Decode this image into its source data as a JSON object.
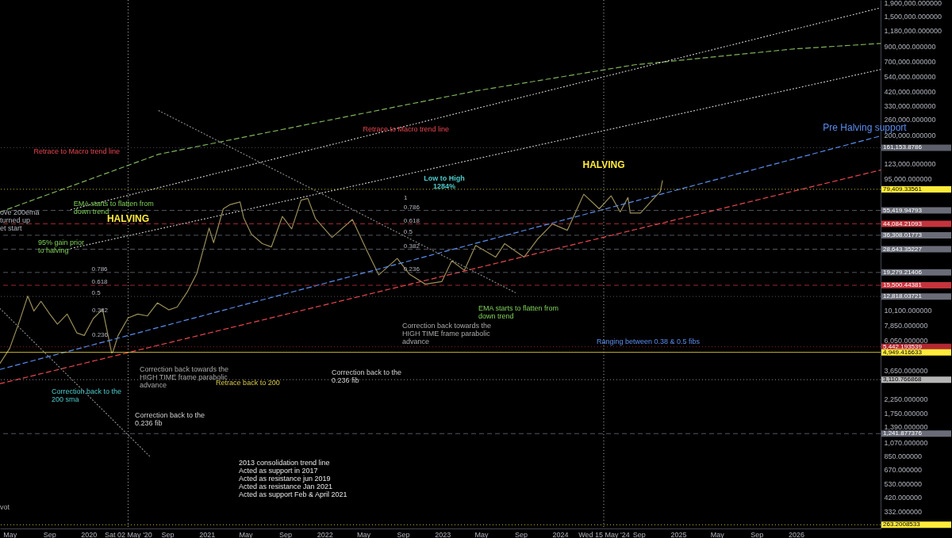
{
  "chart_data": {
    "type": "line",
    "log": "y",
    "grid": false,
    "xlim": [
      "2019-04-01",
      "2026-09-20"
    ],
    "ylim": [
      247,
      1990000
    ],
    "xticks": [
      {
        "value": "2019-05-01",
        "label": "May"
      },
      {
        "value": "2019-09-01",
        "label": "Sep"
      },
      {
        "value": "2020-01-01",
        "label": "2020"
      },
      {
        "value": "2020-05-02",
        "label": "Sat 02 May '20"
      },
      {
        "value": "2020-09-01",
        "label": "Sep"
      },
      {
        "value": "2021-01-01",
        "label": "2021"
      },
      {
        "value": "2021-05-01",
        "label": "May"
      },
      {
        "value": "2021-09-01",
        "label": "Sep"
      },
      {
        "value": "2022-01-01",
        "label": "2022"
      },
      {
        "value": "2022-05-01",
        "label": "May"
      },
      {
        "value": "2022-09-01",
        "label": "Sep"
      },
      {
        "value": "2023-01-01",
        "label": "2023"
      },
      {
        "value": "2023-05-01",
        "label": "May"
      },
      {
        "value": "2023-09-01",
        "label": "Sep"
      },
      {
        "value": "2024-01-01",
        "label": "2024"
      },
      {
        "value": "2024-05-15",
        "label": "Wed 15 May '24"
      },
      {
        "value": "2024-09-01",
        "label": "Sep"
      },
      {
        "value": "2025-01-01",
        "label": "2025"
      },
      {
        "value": "2025-05-01",
        "label": "May"
      },
      {
        "value": "2025-09-01",
        "label": "Sep"
      },
      {
        "value": "2026-01-01",
        "label": "2026"
      }
    ],
    "yticks": [
      {
        "value": 1900000,
        "label": "1,900,000.000000"
      },
      {
        "value": 1500000,
        "label": "1,500,000.000000"
      },
      {
        "value": 1180000,
        "label": "1,180,000.000000"
      },
      {
        "value": 900000,
        "label": "900,000.000000"
      },
      {
        "value": 700000,
        "label": "700,000.000000"
      },
      {
        "value": 540000,
        "label": "540,000.000000"
      },
      {
        "value": 420000,
        "label": "420,000.000000"
      },
      {
        "value": 330000,
        "label": "330,000.000000"
      },
      {
        "value": 260000,
        "label": "260,000.000000"
      },
      {
        "value": 200000,
        "label": "200,000.000000"
      },
      {
        "value": 123000,
        "label": "123,000.000000"
      },
      {
        "value": 95000,
        "label": "95,000.000000"
      },
      {
        "value": 10100,
        "label": "10,100.000000"
      },
      {
        "value": 7850,
        "label": "7,850.000000"
      },
      {
        "value": 6050,
        "label": "6,050.000000"
      },
      {
        "value": 3650,
        "label": "3,650.000000"
      },
      {
        "value": 2250,
        "label": "2,250.000000"
      },
      {
        "value": 1750,
        "label": "1,750.000000"
      },
      {
        "value": 1390,
        "label": "1,390.000000"
      },
      {
        "value": 1070,
        "label": "1,070.000000"
      },
      {
        "value": 850,
        "label": "850.000000"
      },
      {
        "value": 670,
        "label": "670.000000"
      },
      {
        "value": 530,
        "label": "530.000000"
      },
      {
        "value": 420,
        "label": "420.000000"
      },
      {
        "value": 332,
        "label": "332.000000"
      }
    ],
    "x": [
      "2019-04-01",
      "2019-05-01",
      "2019-06-01",
      "2019-06-26",
      "2019-07-15",
      "2019-08-06",
      "2019-09-01",
      "2019-09-26",
      "2019-10-26",
      "2019-11-25",
      "2019-12-18",
      "2020-01-15",
      "2020-02-13",
      "2020-03-12",
      "2020-03-16",
      "2020-04-01",
      "2020-05-02",
      "2020-06-01",
      "2020-07-01",
      "2020-08-01",
      "2020-09-05",
      "2020-10-01",
      "2020-11-01",
      "2020-12-01",
      "2021-01-08",
      "2021-01-22",
      "2021-02-21",
      "2021-03-13",
      "2021-04-14",
      "2021-04-25",
      "2021-05-19",
      "2021-06-22",
      "2021-07-20",
      "2021-08-23",
      "2021-09-21",
      "2021-10-20",
      "2021-11-10",
      "2021-12-04",
      "2022-01-24",
      "2022-03-28",
      "2022-05-12",
      "2022-06-18",
      "2022-08-14",
      "2022-09-20",
      "2022-11-09",
      "2022-12-30",
      "2023-01-30",
      "2023-03-10",
      "2023-04-14",
      "2023-06-15",
      "2023-07-13",
      "2023-09-11",
      "2023-10-23",
      "2023-12-08",
      "2024-01-23",
      "2024-03-14",
      "2024-05-01",
      "2024-06-07",
      "2024-07-05",
      "2024-07-29",
      "2024-08-05",
      "2024-09-06",
      "2024-10-29",
      "2024-11-06",
      "2024-11-13"
    ],
    "series": [
      {
        "color": "#9a8f58",
        "line_style": "solid",
        "values": [
          4100,
          5300,
          8500,
          12900,
          10000,
          11800,
          9600,
          8000,
          9500,
          6900,
          6600,
          8800,
          10300,
          4900,
          5000,
          6600,
          8900,
          9500,
          9200,
          11500,
          10200,
          10700,
          13800,
          19000,
          41000,
          32000,
          57000,
          61000,
          64000,
          49000,
          37000,
          31500,
          29800,
          50000,
          40500,
          66000,
          68000,
          48000,
          35000,
          47500,
          28000,
          18500,
          24500,
          18800,
          15800,
          16500,
          23500,
          20000,
          30500,
          25000,
          31500,
          25000,
          34000,
          44000,
          39500,
          73000,
          57000,
          71000,
          54000,
          69000,
          53000,
          53000,
          73000,
          76000,
          92000
        ]
      },
      {
        "color": "#7fb35a",
        "line_style": "dashed",
        "x": [
          "2019-04-01",
          "2020-08-05",
          "2021-12-08",
          "2023-04-15",
          "2024-08-19",
          "2025-12-24",
          "2026-09-20"
        ],
        "values": [
          53950,
          144200,
          247200,
          423600,
          660700,
          864900,
          950600
        ]
      },
      {
        "color": "#5b8def",
        "line_style": "dashed",
        "x": [
          "2019-04-01",
          "2026-09-20"
        ],
        "values": [
          3700,
          196800
        ]
      },
      {
        "color": "#e8474f",
        "line_style": "dashed",
        "x": [
          "2019-04-01",
          "2026-09-20"
        ],
        "values": [
          2904,
          110200
        ]
      },
      {
        "color": "#c8c8c8",
        "line_style": "dotted",
        "x": [
          "2019-11-07",
          "2026-09-20"
        ],
        "values": [
          56230,
          1742000
        ]
      },
      {
        "color": "#c8c8c8",
        "line_style": "dotted",
        "x": [
          "2019-11-07",
          "2026-09-20"
        ],
        "values": [
          29040,
          609500
        ]
      },
      {
        "color": "#8a8a8a",
        "line_style": "dotted",
        "x": [
          "2020-08-05",
          "2023-08-15"
        ],
        "values": [
          302700,
          13680
        ]
      },
      {
        "color": "#8a8a8a",
        "line_style": "dotted",
        "x": [
          "2019-04-01",
          "2020-07-11"
        ],
        "values": [
          10440,
          830
        ]
      }
    ],
    "ref_lines": [
      {
        "axis": "x",
        "value": "2020-05-02",
        "color": "#b0b0b0",
        "line_style": "dotted"
      },
      {
        "axis": "x",
        "value": "2024-05-15",
        "color": "#b0b0b0",
        "line_style": "dotted"
      },
      {
        "axis": "y",
        "value": 161153.8786,
        "label": "161,153.8786",
        "color": "#5d606b",
        "line_style": "dotted"
      },
      {
        "axis": "y",
        "value": 79409.33561,
        "label": "79,409.33561",
        "color": "#ffeb3b",
        "line_style": "dotted"
      },
      {
        "axis": "y",
        "value": 55419.94793,
        "label": "55,419.94793",
        "color": "#6a6d78",
        "line_style": "dashed"
      },
      {
        "axis": "y",
        "value": 44084.21093,
        "label": "44,084.21093",
        "color": "#c4343d",
        "line_style": "dashed"
      },
      {
        "axis": "y",
        "value": 36308.01773,
        "label": "36,308.01773",
        "color": "#6a6d78",
        "line_style": "dashed"
      },
      {
        "axis": "y",
        "value": 28643.35227,
        "label": "28,643.35227",
        "color": "#6a6d78",
        "line_style": "dashed"
      },
      {
        "axis": "y",
        "value": 19279.21406,
        "label": "19,279.21406",
        "color": "#6a6d78",
        "line_style": "dashed"
      },
      {
        "axis": "y",
        "value": 15500.44381,
        "label": "15,500.44381",
        "color": "#c4343d",
        "line_style": "dashed"
      },
      {
        "axis": "y",
        "value": 12818.03721,
        "label": "12,818.03721",
        "color": "#6a6d78",
        "line_style": "dotted"
      },
      {
        "axis": "y",
        "value": 5442.193539,
        "label": "5,442.193539",
        "color": "#b22833",
        "line_style": "dotted"
      },
      {
        "axis": "y",
        "value": 4949.416633,
        "label": "4,949.416633",
        "color": "#ffeb3b",
        "line_style": "solid"
      },
      {
        "axis": "y",
        "value": 3110.766868,
        "label": "3,110.766868",
        "color": "#b5b5b5",
        "line_style": "dotted"
      },
      {
        "axis": "y",
        "value": 1241.877376,
        "label": "1,241.877376",
        "color": "#6a6d78",
        "line_style": "dashed"
      },
      {
        "axis": "y",
        "value": 263.2008533,
        "label": "263.2008533",
        "color": "#ffeb3b",
        "line_style": "dotted"
      }
    ],
    "annotations": [
      {
        "text": "Retrace to Macro trend line",
        "x": "2019-11-25",
        "y": 152400
      },
      {
        "text": "Retrace to Macro trend line",
        "x": "2022-09-10",
        "y": 221800
      },
      {
        "text": "HALVING",
        "x": "2020-05-02",
        "y": 47860
      },
      {
        "text": "HALVING",
        "x": "2024-05-15",
        "y": 121100
      },
      "Low to High\n1284%",
      "Pre Halving support",
      {
        "text": "ove 200ema\nturned up\net start",
        "x": "2019-04-01",
        "y": 53950
      },
      {
        "text": "EMA starts to flatten from\ndown trend",
        "x": "2019-11-15",
        "y": 61800
      },
      "95% gain prior\nto halving",
      "Correction back towards the\nHIGH TIME frame parabolic\nadvance",
      "Correction back to the\n200 sma",
      {
        "text": "Retrace back to 200",
        "x": "2021-01-29",
        "y": 2944
      },
      "Correction back to the\n0.236 fib",
      "2013 consolidation trend line\nActed as support in 2017\nActed as resistance jun 2019\nActed as resistance Jan 2021\nActed as support Feb & April 2021",
      "Correction back to the\n0.236 fib",
      "Correction back towards the\nHIGH TIME frame parabolic\nadvance",
      "EMA starts to flatten from\ndown trend",
      "Ranging between 0.38 & 0.5 fibs",
      "vot",
      {
        "text": "0.786",
        "x": "2020-01-10",
        "y": 19279.21406
      },
      {
        "text": "0.618",
        "x": "2020-01-10",
        "y": 15500.44381
      },
      {
        "text": "0.5",
        "x": "2020-01-10",
        "y": 12818.03721
      },
      "0.382",
      "0.236",
      "1",
      {
        "text": "0.786",
        "x": "2022-09-03",
        "y": 55419.94793
      },
      {
        "text": "0.618",
        "x": "2022-09-03",
        "y": 44084.21093
      },
      {
        "text": "0.5",
        "x": "2022-09-03",
        "y": 36308.01773
      },
      {
        "text": "0.382",
        "x": "2022-09-03",
        "y": 28643.35227
      },
      {
        "text": "0.236",
        "x": "2022-09-03",
        "y": 19279.21406
      }
    ]
  }
}
